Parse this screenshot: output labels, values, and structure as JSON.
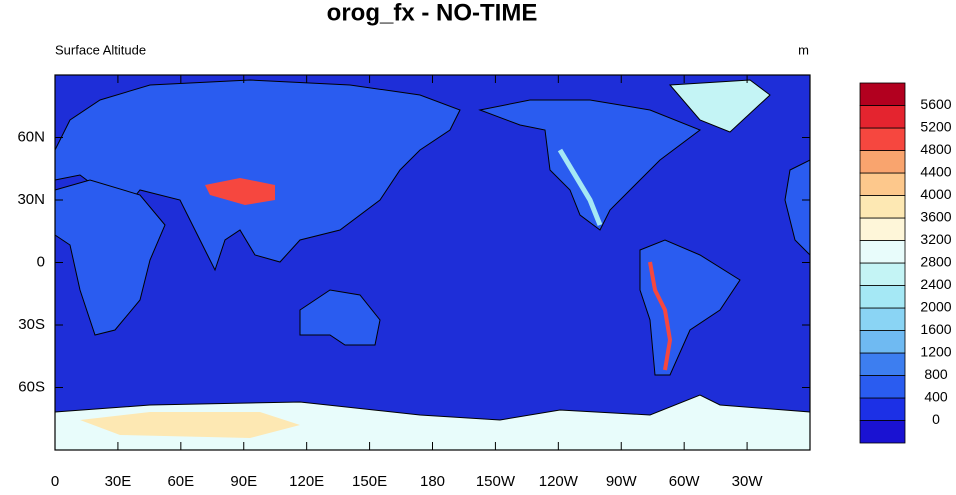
{
  "map": {
    "title": "orog_fx - NO-TIME",
    "left_label": "Surface Altitude",
    "right_label": "m",
    "xlim": [
      0,
      360
    ],
    "ylim": [
      -90,
      90
    ],
    "xticks": [
      0,
      {
        "value": 30,
        "label": "30E"
      },
      {
        "value": 60,
        "label": "60E"
      },
      {
        "value": 90,
        "label": "90E"
      },
      {
        "value": 120,
        "label": "120E"
      },
      {
        "value": 150,
        "label": "150E"
      },
      180,
      {
        "value": 210,
        "label": "150W"
      },
      {
        "value": 240,
        "label": "120W"
      },
      {
        "value": 270,
        "label": "90W"
      },
      {
        "value": 300,
        "label": "60W"
      },
      {
        "value": 330,
        "label": "30W"
      }
    ],
    "yticks": [
      {
        "value": 60,
        "label": "60N"
      },
      {
        "value": 30,
        "label": "30N"
      },
      0,
      {
        "value": -30,
        "label": "30S"
      },
      {
        "value": -60,
        "label": "60S"
      }
    ],
    "colorbar": {
      "levels": [
        0,
        400,
        800,
        1200,
        1600,
        2000,
        2400,
        2800,
        3200,
        3600,
        4000,
        4400,
        4800,
        5200,
        5600
      ],
      "colors": [
        "#1a12d2",
        "#1c30e6",
        "#2a5cf0",
        "#3d7ef0",
        "#6fbaf2",
        "#8ad4f4",
        "#a5e8f5",
        "#c4f4f5",
        "#e8fcfb",
        "#fef6d9",
        "#fde8b3",
        "#fdc88c",
        "#f9a46e",
        "#f6473f",
        "#e4242f",
        "#b2001f"
      ]
    }
  }
}
